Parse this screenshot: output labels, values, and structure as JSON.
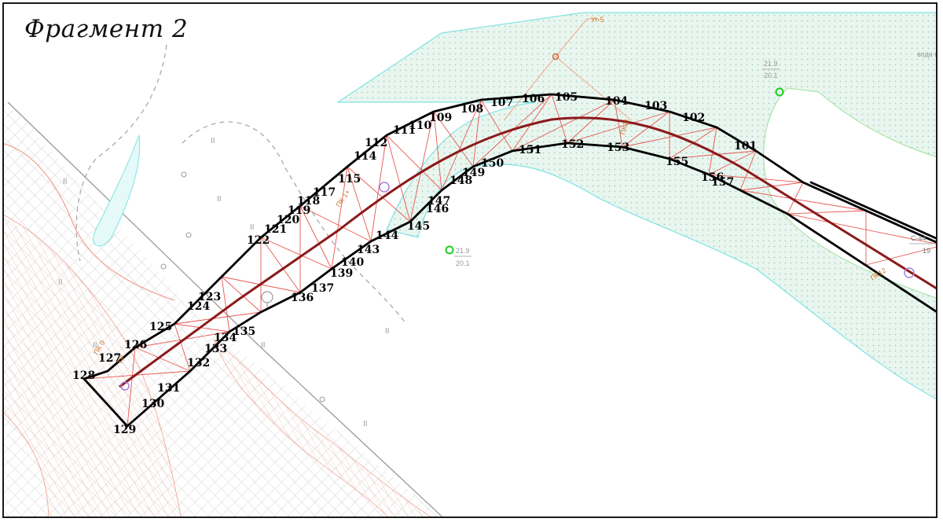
{
  "title": "Фрагмент 2",
  "colors": {
    "pipeline": "#8b1a1a",
    "boundary": "#000000",
    "grid_lines": "#e8564f",
    "water_zone_outline": "#7fe3e3",
    "water_zone_fill": "#d6efe6",
    "green_point": "#22cc22",
    "tick_texture": "#f2a08e",
    "label_orange": "#cc7a33"
  },
  "annotations": {
    "yg5": "Уг-5",
    "water_label": "вода г",
    "elev_top": {
      "num": "21.9",
      "den": "20.1"
    },
    "elev_bottom": {
      "num": "21.9",
      "den": "20.1"
    },
    "c44": {
      "num": "С-44",
      "den": "19"
    },
    "pk12": "ПК12",
    "pk_mid": "ПК11",
    "pk_left": "ПК 1+",
    "pk_start": "ПК 0",
    "pk_start_sub": "ТР"
  },
  "contour_marks": [
    "II",
    "II",
    "II",
    "II",
    "II",
    "II",
    "II",
    "II",
    "II"
  ],
  "boundary_points": [
    {
      "id": "101",
      "label": "101"
    },
    {
      "id": "102",
      "label": "102"
    },
    {
      "id": "103",
      "label": "103"
    },
    {
      "id": "104",
      "label": "104"
    },
    {
      "id": "105",
      "label": "105"
    },
    {
      "id": "106",
      "label": "106"
    },
    {
      "id": "107",
      "label": "107"
    },
    {
      "id": "108",
      "label": "108"
    },
    {
      "id": "109",
      "label": "109"
    },
    {
      "id": "110",
      "label": "110"
    },
    {
      "id": "111",
      "label": "111"
    },
    {
      "id": "112",
      "label": "112"
    },
    {
      "id": "114",
      "label": "114"
    },
    {
      "id": "115",
      "label": "115"
    },
    {
      "id": "117",
      "label": "117"
    },
    {
      "id": "118",
      "label": "118"
    },
    {
      "id": "119",
      "label": "119"
    },
    {
      "id": "120",
      "label": "120"
    },
    {
      "id": "121",
      "label": "121"
    },
    {
      "id": "122",
      "label": "122"
    },
    {
      "id": "123",
      "label": "123"
    },
    {
      "id": "124",
      "label": "124"
    },
    {
      "id": "125",
      "label": "125"
    },
    {
      "id": "126",
      "label": "126"
    },
    {
      "id": "127",
      "label": "127"
    },
    {
      "id": "128",
      "label": "128"
    },
    {
      "id": "129",
      "label": "129"
    },
    {
      "id": "130",
      "label": "130"
    },
    {
      "id": "131",
      "label": "131"
    },
    {
      "id": "132",
      "label": "132"
    },
    {
      "id": "133",
      "label": "133"
    },
    {
      "id": "134",
      "label": "134"
    },
    {
      "id": "135",
      "label": "135"
    },
    {
      "id": "136",
      "label": "136"
    },
    {
      "id": "137",
      "label": "137"
    },
    {
      "id": "139",
      "label": "139"
    },
    {
      "id": "140",
      "label": "140"
    },
    {
      "id": "143",
      "label": "143"
    },
    {
      "id": "144",
      "label": "144"
    },
    {
      "id": "145",
      "label": "145"
    },
    {
      "id": "146",
      "label": "146"
    },
    {
      "id": "147",
      "label": "147"
    },
    {
      "id": "148",
      "label": "148"
    },
    {
      "id": "149",
      "label": "149"
    },
    {
      "id": "150",
      "label": "150"
    },
    {
      "id": "151",
      "label": "151"
    },
    {
      "id": "152",
      "label": "152"
    },
    {
      "id": "153",
      "label": "153"
    },
    {
      "id": "155",
      "label": "155"
    },
    {
      "id": "156",
      "label": "156"
    },
    {
      "id": "157",
      "label": "157"
    }
  ]
}
